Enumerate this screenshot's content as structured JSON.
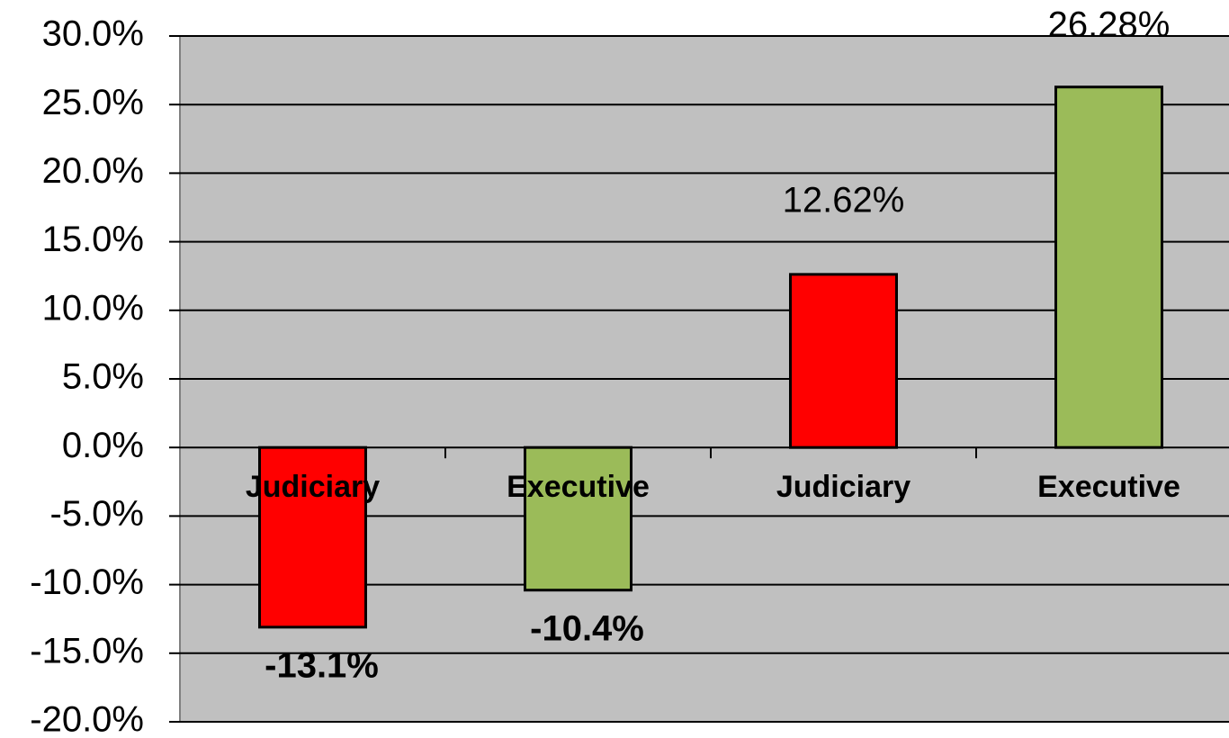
{
  "chart_data": {
    "type": "bar",
    "categories": [
      "Judiciary",
      "Executive",
      "Judiciary",
      "Executive"
    ],
    "values": [
      -13.1,
      -10.4,
      12.62,
      26.28
    ],
    "value_labels": [
      "-13.1%",
      "-10.4%",
      "12.62%",
      "26.28%"
    ],
    "colors": [
      "#ff0000",
      "#9bbb59",
      "#ff0000",
      "#9bbb59"
    ],
    "ylim": [
      -20,
      30
    ],
    "yticks": [
      {
        "value": -20,
        "label": "-20.0%"
      },
      {
        "value": -15,
        "label": "-15.0%"
      },
      {
        "value": -10,
        "label": "-10.0%"
      },
      {
        "value": -5,
        "label": "-5.0%"
      },
      {
        "value": 0,
        "label": "0.0%"
      },
      {
        "value": 5,
        "label": "5.0%"
      },
      {
        "value": 10,
        "label": "10.0%"
      },
      {
        "value": 15,
        "label": "15.0%"
      },
      {
        "value": 20,
        "label": "20.0%"
      },
      {
        "value": 25,
        "label": "25.0%"
      },
      {
        "value": 30,
        "label": "30.0%"
      }
    ],
    "grid": true
  }
}
